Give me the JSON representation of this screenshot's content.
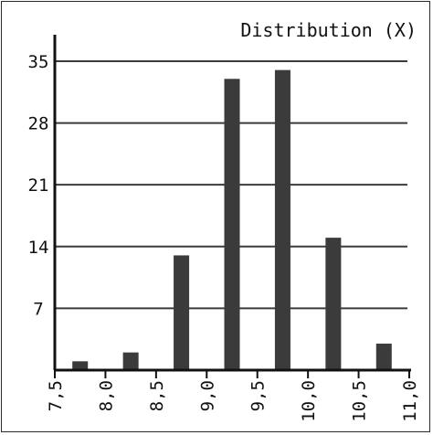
{
  "chart_data": {
    "type": "bar",
    "title": "Distribution (X)",
    "xlabel": "",
    "ylabel": "",
    "x_ticks": [
      "7,5",
      "8,0",
      "8,5",
      "9,0",
      "9,5",
      "10,0",
      "10,5",
      "11,0"
    ],
    "y_ticks": [
      "7",
      "14",
      "21",
      "28",
      "35"
    ],
    "xlim": [
      7.5,
      11.0
    ],
    "ylim": [
      0,
      38
    ],
    "bins": [
      {
        "center": 7.75,
        "value": 1
      },
      {
        "center": 8.25,
        "value": 2
      },
      {
        "center": 8.75,
        "value": 13
      },
      {
        "center": 9.25,
        "value": 33
      },
      {
        "center": 9.75,
        "value": 34
      },
      {
        "center": 10.25,
        "value": 15
      },
      {
        "center": 10.75,
        "value": 3
      }
    ],
    "grid": "horizontal",
    "bar_color": "#3b3b3b",
    "grid_color": "#3b3b3b"
  }
}
